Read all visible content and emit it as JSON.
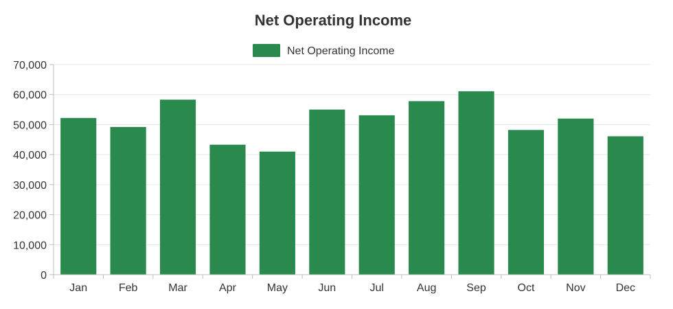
{
  "chart_data": {
    "type": "bar",
    "title": "Net Operating Income",
    "categories": [
      "Jan",
      "Feb",
      "Mar",
      "Apr",
      "May",
      "Jun",
      "Jul",
      "Aug",
      "Sep",
      "Oct",
      "Nov",
      "Dec"
    ],
    "series": [
      {
        "name": "Net Operating Income",
        "color": "#2a8a4e",
        "values": [
          52200,
          49200,
          58300,
          43300,
          41000,
          55000,
          53100,
          57800,
          61100,
          48200,
          52000,
          46100
        ]
      }
    ],
    "ylim": [
      0,
      70000
    ],
    "yticks": [
      0,
      10000,
      20000,
      30000,
      40000,
      50000,
      60000,
      70000
    ],
    "ytick_labels": [
      "0",
      "10,000",
      "20,000",
      "30,000",
      "40,000",
      "50,000",
      "60,000",
      "70,000"
    ],
    "xlabel": "",
    "ylabel": "",
    "grid": true,
    "legend_position": "top-center"
  }
}
